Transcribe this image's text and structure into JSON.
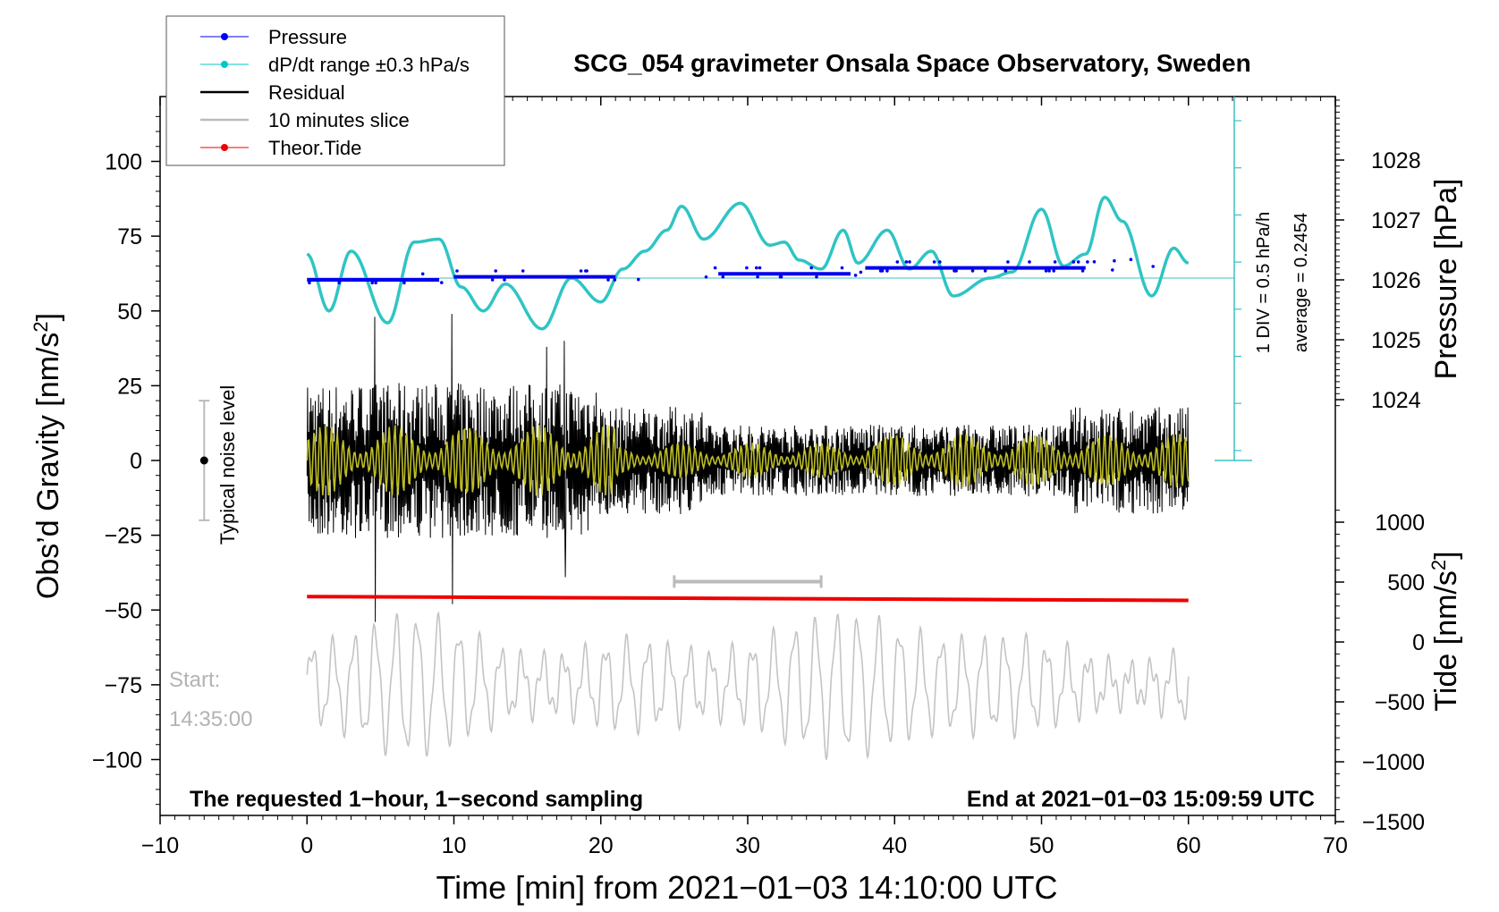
{
  "chart_data": {
    "type": "line",
    "title": "SCG_054 gravimeter Onsala Space Observatory, Sweden",
    "xlabel": "Time [min] from 2021−01−03 14:10:00 UTC",
    "xlim": [
      -10,
      70
    ],
    "xticks": [
      "−10",
      "0",
      "10",
      "20",
      "30",
      "40",
      "50",
      "60",
      "70"
    ],
    "y_left": {
      "label": "Obs’d Gravity [nm/s",
      "label_sup": "2",
      "label_end": "]",
      "ylim": [
        -120,
        120
      ],
      "ticks": [
        100,
        75,
        50,
        25,
        0,
        -25,
        -50,
        -75,
        -100
      ],
      "tick_labels": [
        "100",
        "75",
        "50",
        "25",
        "0",
        "−25",
        "−50",
        "−75",
        "−100"
      ]
    },
    "y_right_pressure": {
      "label": "Pressure [hPa]",
      "ticks": [
        1028,
        1027,
        1026,
        1025,
        1024
      ],
      "tick_labels": [
        "1028",
        "1027",
        "1026",
        "1025",
        "1024"
      ]
    },
    "y_right_tide": {
      "label": "Tide [nm/s",
      "label_sup": "2",
      "label_end": "]",
      "ticks": [
        1000,
        500,
        0,
        -500,
        -1000,
        -1500
      ],
      "tick_labels": [
        "1000",
        "500",
        "0",
        "−500",
        "−1000",
        "−1500"
      ]
    },
    "legend": {
      "placement": "top-left",
      "items": [
        {
          "name": "Pressure",
          "color": "#0000ee",
          "marker": true
        },
        {
          "name": "dP/dt range ±0.3 hPa/s",
          "color": "#00c8c8",
          "marker": true
        },
        {
          "name": "Residual",
          "color": "#000000",
          "marker": false
        },
        {
          "name": "10 minutes slice",
          "color": "#bbbbbb",
          "marker": false
        },
        {
          "name": "Theor.Tide",
          "color": "#ee0000",
          "marker": true
        }
      ]
    },
    "series": [
      {
        "name": "Pressure",
        "unit": "hPa",
        "x": [
          0,
          9,
          10,
          21,
          28,
          37,
          38,
          53,
          60
        ],
        "y": [
          1026.0,
          1026.0,
          1026.05,
          1026.05,
          1026.1,
          1026.1,
          1026.2,
          1026.2,
          1026.3
        ]
      },
      {
        "name": "dP/dt (cyan)",
        "unit": "gravity-axis",
        "x": [
          0,
          1.5,
          3,
          5.5,
          7.3,
          9,
          10.5,
          12,
          13.5,
          16,
          18,
          20,
          21.5,
          23,
          24.5,
          25.5,
          27,
          29.5,
          31.5,
          32.5,
          33.5,
          35,
          36.5,
          37.5,
          39.5,
          41,
          42.5,
          44,
          46.5,
          48,
          50,
          51.5,
          53,
          54.3,
          55.5,
          57.5,
          59,
          60
        ],
        "y": [
          69,
          50,
          70,
          46,
          73,
          74,
          58,
          50,
          59,
          44,
          61,
          53,
          64,
          70,
          77,
          85,
          74,
          86,
          72,
          73,
          67,
          64,
          77,
          66,
          77,
          64,
          70,
          55,
          61,
          63,
          84,
          65,
          69,
          88,
          80,
          55,
          71,
          66
        ]
      },
      {
        "name": "Residual",
        "unit": "nm/s2",
        "envelope": "±25 typical, spikes to 48 and −54"
      },
      {
        "name": "10 minutes slice",
        "unit": "gravity-axis",
        "center": -75,
        "amplitude": 20
      },
      {
        "name": "Theor.Tide",
        "unit": "gravity-axis",
        "x": [
          0,
          60
        ],
        "y": [
          -45.5,
          -46.8
        ]
      }
    ],
    "noise_level": {
      "label": "Typical noise level",
      "center": 0,
      "range": [
        -20,
        20
      ],
      "x": -7
    },
    "slice_marker": {
      "x_range": [
        25,
        35
      ],
      "y": -40.5
    },
    "right_scale_annotation": {
      "div": "1 DIV = 0.5 hPa/h",
      "average": "average = 0.2454",
      "level": 61
    },
    "annotations": {
      "start_label": "Start:",
      "start_time": "14:35:00",
      "footer_left": "The requested 1−hour, 1−second sampling",
      "footer_right": "End at 2021−01−03 15:09:59 UTC"
    }
  }
}
